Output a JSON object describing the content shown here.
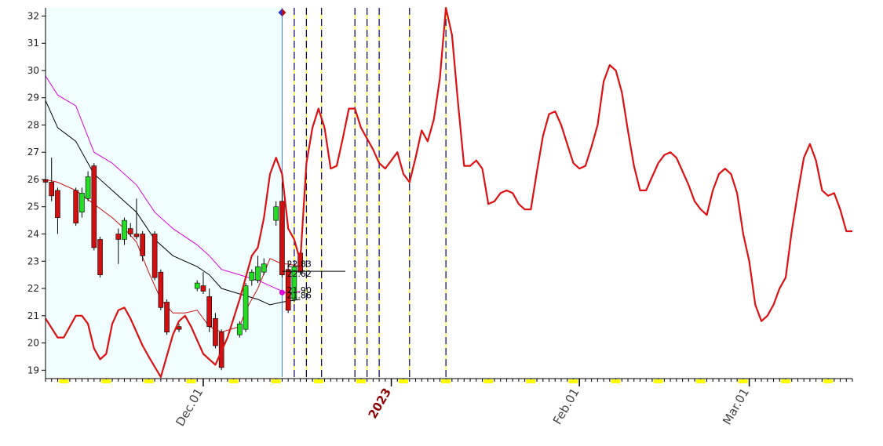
{
  "chart_data": {
    "type": "line",
    "title": "",
    "xlabel": "",
    "ylabel": "",
    "ylim": [
      18.75,
      32.3
    ],
    "y_ticks": [
      19,
      20,
      21,
      22,
      23,
      24,
      25,
      26,
      27,
      28,
      29,
      30,
      31,
      32
    ],
    "x_day_range": [
      -26,
      86
    ],
    "x_tick_labels": [
      {
        "label": "Dec.01",
        "day": 0,
        "highlight": false
      },
      {
        "label": "2023",
        "day": 31,
        "highlight": true
      },
      {
        "label": "Feb.01",
        "day": 62,
        "highlight": false
      },
      {
        "label": "Mar.01",
        "day": 90,
        "highlight": false
      }
    ],
    "history_shading": {
      "from_day": -26,
      "to_day": 13,
      "color": "#f0feff"
    },
    "cycle_lines_days": [
      13,
      15,
      17,
      19.5,
      25,
      27,
      29,
      34,
      40
    ],
    "price_labels": [
      "22.83",
      "22.62",
      "21.90",
      "21.86"
    ],
    "price_label_values": [
      22.9,
      22.55,
      21.95,
      21.75
    ],
    "colors": {
      "up_candle": "#22dd22",
      "down_candle": "#d01010",
      "projection": "#dd1111",
      "upper_band": "#dd00dd",
      "middle_band": "#000000",
      "lower_band": "#cc1111",
      "axis": "#000000",
      "cycle_line": "#000080",
      "cycle_dash": "#ffff00",
      "tick_highlight": "#ffff00",
      "marker_top": "#cc0000",
      "marker_current": "#dd00dd"
    },
    "series": [
      {
        "type": "candlestick",
        "candles": [
          {
            "day": -26,
            "open": 26.0,
            "high": 26.3,
            "low": 25.8,
            "close": 25.9
          },
          {
            "day": -25,
            "open": 25.9,
            "high": 26.8,
            "low": 25.2,
            "close": 25.4
          },
          {
            "day": -24,
            "open": 25.6,
            "high": 25.7,
            "low": 24.0,
            "close": 24.6
          },
          {
            "day": -21,
            "open": 25.6,
            "high": 25.7,
            "low": 24.3,
            "close": 24.4
          },
          {
            "day": -20,
            "open": 24.8,
            "high": 25.7,
            "low": 24.6,
            "close": 25.5
          },
          {
            "day": -19,
            "open": 25.3,
            "high": 26.3,
            "low": 25.2,
            "close": 26.1
          },
          {
            "day": -18,
            "open": 26.5,
            "high": 26.6,
            "low": 23.4,
            "close": 23.5
          },
          {
            "day": -17,
            "open": 23.8,
            "high": 23.9,
            "low": 22.4,
            "close": 22.5
          },
          {
            "day": -14,
            "open": 24.0,
            "high": 24.2,
            "low": 22.9,
            "close": 23.8
          },
          {
            "day": -13,
            "open": 23.8,
            "high": 24.6,
            "low": 23.6,
            "close": 24.5
          },
          {
            "day": -12,
            "open": 24.2,
            "high": 24.4,
            "low": 23.9,
            "close": 24.0
          },
          {
            "day": -11,
            "open": 24.0,
            "high": 25.3,
            "low": 23.8,
            "close": 23.9
          },
          {
            "day": -10,
            "open": 24.0,
            "high": 24.1,
            "low": 23.0,
            "close": 23.2
          },
          {
            "day": -8,
            "open": 24.0,
            "high": 24.1,
            "low": 22.3,
            "close": 22.4
          },
          {
            "day": -7,
            "open": 22.6,
            "high": 22.7,
            "low": 21.2,
            "close": 21.3
          },
          {
            "day": -6,
            "open": 21.5,
            "high": 21.6,
            "low": 20.3,
            "close": 20.4
          },
          {
            "day": -4,
            "open": 20.6,
            "high": 20.7,
            "low": 20.4,
            "close": 20.5
          },
          {
            "day": -1,
            "open": 22.0,
            "high": 22.3,
            "low": 21.9,
            "close": 22.2
          },
          {
            "day": 0,
            "open": 22.1,
            "high": 22.6,
            "low": 21.8,
            "close": 21.9
          },
          {
            "day": 1,
            "open": 21.7,
            "high": 22.0,
            "low": 20.4,
            "close": 20.6
          },
          {
            "day": 2,
            "open": 20.9,
            "high": 21.1,
            "low": 19.8,
            "close": 19.9
          },
          {
            "day": 3,
            "open": 20.4,
            "high": 20.5,
            "low": 19.0,
            "close": 19.1
          },
          {
            "day": 6,
            "open": 20.3,
            "high": 20.8,
            "low": 20.2,
            "close": 20.7
          },
          {
            "day": 7,
            "open": 20.5,
            "high": 22.2,
            "low": 20.4,
            "close": 22.1
          },
          {
            "day": 8,
            "open": 22.3,
            "high": 22.7,
            "low": 22.1,
            "close": 22.6
          },
          {
            "day": 9,
            "open": 22.3,
            "high": 23.2,
            "low": 22.2,
            "close": 22.8
          },
          {
            "day": 10,
            "open": 22.6,
            "high": 23.1,
            "low": 22.5,
            "close": 22.9
          },
          {
            "day": 12,
            "open": 24.5,
            "high": 25.2,
            "low": 24.3,
            "close": 25.0
          },
          {
            "day": 13,
            "open": 25.2,
            "high": 25.9,
            "low": 22.4,
            "close": 22.5
          },
          {
            "day": 14,
            "open": 22.7,
            "high": 23.0,
            "low": 21.1,
            "close": 21.2
          },
          {
            "day": 15,
            "open": 21.6,
            "high": 22.9,
            "low": 21.5,
            "close": 22.8
          },
          {
            "day": 16,
            "open": 23.3,
            "high": 23.4,
            "low": 22.5,
            "close": 22.6
          }
        ]
      },
      {
        "name": "",
        "type": "line",
        "role": "upper_band",
        "points": [
          [
            -26,
            29.8
          ],
          [
            -24,
            29.1
          ],
          [
            -21,
            28.7
          ],
          [
            -18,
            27.0
          ],
          [
            -15,
            26.6
          ],
          [
            -11,
            25.8
          ],
          [
            -8,
            24.8
          ],
          [
            -5,
            24.2
          ],
          [
            -1,
            23.6
          ],
          [
            1,
            23.2
          ],
          [
            3,
            22.7
          ],
          [
            6,
            22.5
          ],
          [
            9,
            22.3
          ],
          [
            11,
            22.1
          ],
          [
            13,
            21.9
          ],
          [
            14,
            21.8
          ],
          [
            16,
            21.9
          ]
        ]
      },
      {
        "name": "",
        "type": "line",
        "role": "middle_band",
        "points": [
          [
            -26,
            28.9
          ],
          [
            -24,
            27.9
          ],
          [
            -21,
            27.4
          ],
          [
            -18,
            26.2
          ],
          [
            -15,
            25.6
          ],
          [
            -11,
            24.8
          ],
          [
            -8,
            23.8
          ],
          [
            -5,
            23.2
          ],
          [
            -1,
            22.8
          ],
          [
            1,
            22.5
          ],
          [
            3,
            22.0
          ],
          [
            6,
            21.8
          ],
          [
            9,
            21.6
          ],
          [
            11,
            21.4
          ],
          [
            13,
            21.5
          ],
          [
            16,
            21.6
          ]
        ]
      },
      {
        "name": "",
        "type": "line",
        "role": "lower_band",
        "points": [
          [
            -26,
            26.0
          ],
          [
            -24,
            25.9
          ],
          [
            -21,
            25.6
          ],
          [
            -18,
            25.1
          ],
          [
            -15,
            24.6
          ],
          [
            -13,
            24.2
          ],
          [
            -11,
            23.7
          ],
          [
            -9,
            22.6
          ],
          [
            -7,
            21.6
          ],
          [
            -5,
            21.1
          ],
          [
            -3,
            21.1
          ],
          [
            -1,
            21.2
          ],
          [
            1,
            20.6
          ],
          [
            3,
            20.4
          ],
          [
            6,
            20.6
          ],
          [
            7,
            21.2
          ],
          [
            9,
            22.0
          ],
          [
            11,
            23.1
          ],
          [
            13,
            22.9
          ],
          [
            14,
            22.9
          ],
          [
            16,
            22.8
          ]
        ]
      },
      {
        "name": "",
        "type": "line",
        "role": "projection",
        "points": [
          [
            -26,
            20.9
          ],
          [
            -24,
            20.2
          ],
          [
            -23,
            20.2
          ],
          [
            -21,
            21.0
          ],
          [
            -20,
            21.0
          ],
          [
            -19,
            20.7
          ],
          [
            -18,
            19.8
          ],
          [
            -17,
            19.4
          ],
          [
            -16,
            19.6
          ],
          [
            -15,
            20.7
          ],
          [
            -14,
            21.2
          ],
          [
            -13,
            21.3
          ],
          [
            -12,
            20.9
          ],
          [
            -10,
            19.9
          ],
          [
            -9,
            19.5
          ],
          [
            -7,
            18.75
          ],
          [
            -5,
            20.3
          ],
          [
            -4,
            20.8
          ],
          [
            -3,
            21.0
          ],
          [
            -2,
            20.6
          ],
          [
            -1,
            20.1
          ],
          [
            0,
            19.6
          ],
          [
            1,
            19.4
          ],
          [
            2,
            19.2
          ],
          [
            4,
            20.2
          ],
          [
            6,
            21.6
          ],
          [
            8,
            23.2
          ],
          [
            9,
            23.5
          ],
          [
            10,
            24.6
          ],
          [
            11,
            26.2
          ],
          [
            12,
            26.8
          ],
          [
            13,
            26.2
          ],
          [
            14,
            24.2
          ],
          [
            15,
            23.8
          ],
          [
            16,
            23.0
          ],
          [
            17,
            26.6
          ],
          [
            18,
            27.9
          ],
          [
            19,
            28.6
          ],
          [
            20,
            27.9
          ],
          [
            21,
            26.4
          ],
          [
            22,
            26.5
          ],
          [
            23,
            27.5
          ],
          [
            24,
            28.6
          ],
          [
            25,
            28.6
          ],
          [
            26,
            27.9
          ],
          [
            28,
            27.1
          ],
          [
            29,
            26.6
          ],
          [
            30,
            26.4
          ],
          [
            31,
            26.7
          ],
          [
            32,
            27.0
          ],
          [
            33,
            26.2
          ],
          [
            34,
            25.9
          ],
          [
            35,
            26.8
          ],
          [
            36,
            27.8
          ],
          [
            37,
            27.4
          ],
          [
            38,
            28.2
          ],
          [
            39,
            29.7
          ],
          [
            40,
            32.3
          ],
          [
            41,
            31.3
          ],
          [
            42,
            28.8
          ],
          [
            43,
            26.5
          ],
          [
            44,
            26.5
          ],
          [
            45,
            26.7
          ],
          [
            46,
            26.4
          ],
          [
            47,
            25.1
          ],
          [
            48,
            25.2
          ],
          [
            49,
            25.5
          ],
          [
            50,
            25.6
          ],
          [
            51,
            25.5
          ],
          [
            52,
            25.1
          ],
          [
            53,
            24.9
          ],
          [
            54,
            24.9
          ],
          [
            55,
            26.3
          ],
          [
            56,
            27.6
          ],
          [
            57,
            28.4
          ],
          [
            58,
            28.5
          ],
          [
            59,
            28.0
          ],
          [
            60,
            27.3
          ],
          [
            61,
            26.6
          ],
          [
            62,
            26.4
          ],
          [
            63,
            26.5
          ],
          [
            64,
            27.2
          ],
          [
            65,
            28.0
          ],
          [
            66,
            29.6
          ],
          [
            67,
            30.2
          ],
          [
            68,
            30.0
          ],
          [
            69,
            29.2
          ],
          [
            70,
            27.8
          ],
          [
            71,
            26.5
          ],
          [
            72,
            25.6
          ],
          [
            73,
            25.6
          ],
          [
            74,
            26.1
          ],
          [
            75,
            26.6
          ],
          [
            76,
            26.9
          ],
          [
            77,
            27.0
          ],
          [
            78,
            26.8
          ],
          [
            79,
            26.3
          ],
          [
            80,
            25.8
          ],
          [
            81,
            25.2
          ],
          [
            82,
            24.9
          ],
          [
            83,
            24.7
          ],
          [
            84,
            25.6
          ],
          [
            85,
            26.2
          ],
          [
            86,
            26.4
          ],
          [
            87,
            26.2
          ],
          [
            88,
            25.5
          ],
          [
            89,
            24.0
          ],
          [
            90,
            23.0
          ],
          [
            91,
            21.4
          ],
          [
            92,
            20.8
          ],
          [
            93,
            21.0
          ],
          [
            94,
            21.4
          ],
          [
            95,
            22.0
          ],
          [
            96,
            22.4
          ],
          [
            97,
            24.1
          ],
          [
            98,
            25.5
          ],
          [
            99,
            26.8
          ],
          [
            100,
            27.3
          ],
          [
            101,
            26.7
          ],
          [
            102,
            25.6
          ],
          [
            103,
            25.4
          ],
          [
            104,
            25.5
          ],
          [
            105,
            24.9
          ],
          [
            106,
            24.1
          ],
          [
            107,
            24.1
          ]
        ]
      }
    ]
  }
}
